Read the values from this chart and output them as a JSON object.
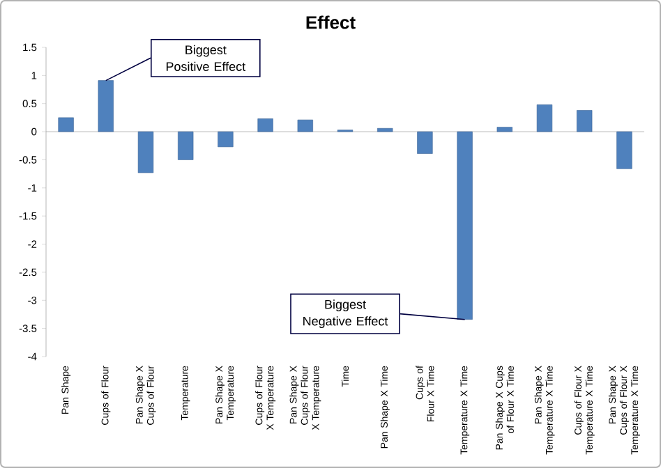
{
  "chart_data": {
    "type": "bar",
    "title": "Effect",
    "categories": [
      "Pan Shape",
      "Cups of Flour",
      "Pan Shape X Cups of Flour",
      "Temperature",
      "Pan Shape X Temperature",
      "Cups of Flour X Temperature",
      "Pan Shape X Cups of Flour X Temperature",
      "Time",
      "Pan Shape X Time",
      "Cups of Flour X Time",
      "Temperature X Time",
      "Pan Shape X Cups of Flour X Time",
      "Pan Shape X Temperature X Time",
      "Cups of Flour X Temperature X Time",
      "Pan Shape X Cups of Flour X Temperature X Time"
    ],
    "values": [
      0.25,
      0.91,
      -0.73,
      -0.5,
      -0.27,
      0.23,
      0.21,
      0.03,
      0.06,
      -0.39,
      -3.34,
      0.08,
      0.48,
      0.38,
      -0.66
    ],
    "color": "#4f81bd",
    "ylim": [
      -4,
      1.5
    ],
    "yticks": [
      -4,
      -3.5,
      -3,
      -2.5,
      -2,
      -1.5,
      -1,
      -0.5,
      0,
      0.5,
      1,
      1.5
    ],
    "annotations": [
      {
        "text": "Biggest Positive Effect",
        "x": "Cups of Flour",
        "y": 0.91
      },
      {
        "text": "Biggest Negative Effect",
        "x": "Temperature X Time",
        "y": -3.34
      }
    ]
  }
}
